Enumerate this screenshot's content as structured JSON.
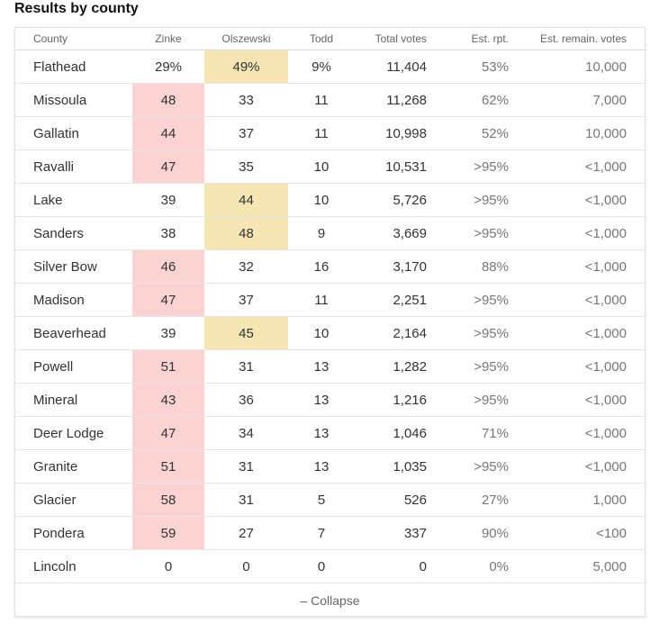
{
  "title": "Results by county",
  "columns": {
    "county": "County",
    "zinke": "Zinke",
    "olszewski": "Olszewski",
    "todd": "Todd",
    "total": "Total votes",
    "rpt": "Est. rpt.",
    "remain": "Est. remain. votes"
  },
  "colors": {
    "republican_lead": "#fcd3d3",
    "democrat_lead": "#f5e6b3"
  },
  "rows": [
    {
      "county": "Flathead",
      "zinke": "29%",
      "olszewski": "49%",
      "todd": "9%",
      "total": "11,404",
      "rpt": "53%",
      "remain": "10,000",
      "leader": "olszewski"
    },
    {
      "county": "Missoula",
      "zinke": "48",
      "olszewski": "33",
      "todd": "11",
      "total": "11,268",
      "rpt": "62%",
      "remain": "7,000",
      "leader": "zinke"
    },
    {
      "county": "Gallatin",
      "zinke": "44",
      "olszewski": "37",
      "todd": "11",
      "total": "10,998",
      "rpt": "52%",
      "remain": "10,000",
      "leader": "zinke"
    },
    {
      "county": "Ravalli",
      "zinke": "47",
      "olszewski": "35",
      "todd": "10",
      "total": "10,531",
      "rpt": ">95%",
      "remain": "<1,000",
      "leader": "zinke"
    },
    {
      "county": "Lake",
      "zinke": "39",
      "olszewski": "44",
      "todd": "10",
      "total": "5,726",
      "rpt": ">95%",
      "remain": "<1,000",
      "leader": "olszewski"
    },
    {
      "county": "Sanders",
      "zinke": "38",
      "olszewski": "48",
      "todd": "9",
      "total": "3,669",
      "rpt": ">95%",
      "remain": "<1,000",
      "leader": "olszewski"
    },
    {
      "county": "Silver Bow",
      "zinke": "46",
      "olszewski": "32",
      "todd": "16",
      "total": "3,170",
      "rpt": "88%",
      "remain": "<1,000",
      "leader": "zinke"
    },
    {
      "county": "Madison",
      "zinke": "47",
      "olszewski": "37",
      "todd": "11",
      "total": "2,251",
      "rpt": ">95%",
      "remain": "<1,000",
      "leader": "zinke"
    },
    {
      "county": "Beaverhead",
      "zinke": "39",
      "olszewski": "45",
      "todd": "10",
      "total": "2,164",
      "rpt": ">95%",
      "remain": "<1,000",
      "leader": "olszewski"
    },
    {
      "county": "Powell",
      "zinke": "51",
      "olszewski": "31",
      "todd": "13",
      "total": "1,282",
      "rpt": ">95%",
      "remain": "<1,000",
      "leader": "zinke"
    },
    {
      "county": "Mineral",
      "zinke": "43",
      "olszewski": "36",
      "todd": "13",
      "total": "1,216",
      "rpt": ">95%",
      "remain": "<1,000",
      "leader": "zinke"
    },
    {
      "county": "Deer Lodge",
      "zinke": "47",
      "olszewski": "34",
      "todd": "13",
      "total": "1,046",
      "rpt": "71%",
      "remain": "<1,000",
      "leader": "zinke"
    },
    {
      "county": "Granite",
      "zinke": "51",
      "olszewski": "31",
      "todd": "13",
      "total": "1,035",
      "rpt": ">95%",
      "remain": "<1,000",
      "leader": "zinke"
    },
    {
      "county": "Glacier",
      "zinke": "58",
      "olszewski": "31",
      "todd": "5",
      "total": "526",
      "rpt": "27%",
      "remain": "1,000",
      "leader": "zinke"
    },
    {
      "county": "Pondera",
      "zinke": "59",
      "olszewski": "27",
      "todd": "7",
      "total": "337",
      "rpt": "90%",
      "remain": "<100",
      "leader": "zinke"
    },
    {
      "county": "Lincoln",
      "zinke": "0",
      "olszewski": "0",
      "todd": "0",
      "total": "0",
      "rpt": "0%",
      "remain": "5,000",
      "leader": ""
    }
  ],
  "collapse_label": "– Collapse"
}
